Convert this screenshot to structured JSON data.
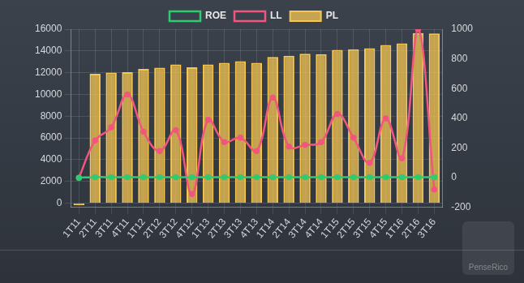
{
  "chart_data": {
    "type": "bar",
    "categories": [
      "1T11",
      "2T11",
      "3T11",
      "4T11",
      "1T12",
      "2T12",
      "3T12",
      "4T12",
      "1T13",
      "2T13",
      "3T13",
      "4T13",
      "1T14",
      "2T14",
      "3T14",
      "4T14",
      "1T15",
      "2T15",
      "3T15",
      "4T15",
      "1T16",
      "2T16",
      "3T16"
    ],
    "series": [
      {
        "name": "ROE",
        "type": "line",
        "axis": "y2",
        "color": "#2ecc71",
        "marker": "circle",
        "values": [
          0,
          4,
          4,
          4,
          4,
          4,
          4,
          4,
          4,
          4,
          4,
          4,
          4,
          4,
          4,
          4,
          4,
          4,
          4,
          4,
          4,
          4,
          4
        ]
      },
      {
        "name": "LL",
        "type": "line",
        "axis": "y2",
        "color": "#f2557e",
        "marker": "circle",
        "values": [
          0,
          250,
          340,
          560,
          310,
          180,
          320,
          -110,
          390,
          240,
          270,
          180,
          540,
          210,
          220,
          240,
          430,
          270,
          100,
          400,
          130,
          1000,
          -80
        ]
      },
      {
        "name": "PL",
        "type": "bar",
        "color": "#f5c652",
        "values": [
          -200,
          11900,
          12000,
          12050,
          12350,
          12450,
          12750,
          12500,
          12750,
          12900,
          13050,
          12900,
          13450,
          13550,
          13750,
          13700,
          14100,
          14150,
          14250,
          14550,
          14700,
          15650,
          15600
        ]
      }
    ],
    "ylim": [
      -400,
      16000
    ],
    "yticks": [
      0,
      2000,
      4000,
      6000,
      8000,
      10000,
      12000,
      14000,
      16000
    ],
    "y2lim": [
      -200,
      1000
    ],
    "y2ticks": [
      -200,
      0,
      200,
      400,
      600,
      800,
      1000
    ],
    "grid": true,
    "legend": "top",
    "annotations": [
      "PenseRico"
    ]
  }
}
